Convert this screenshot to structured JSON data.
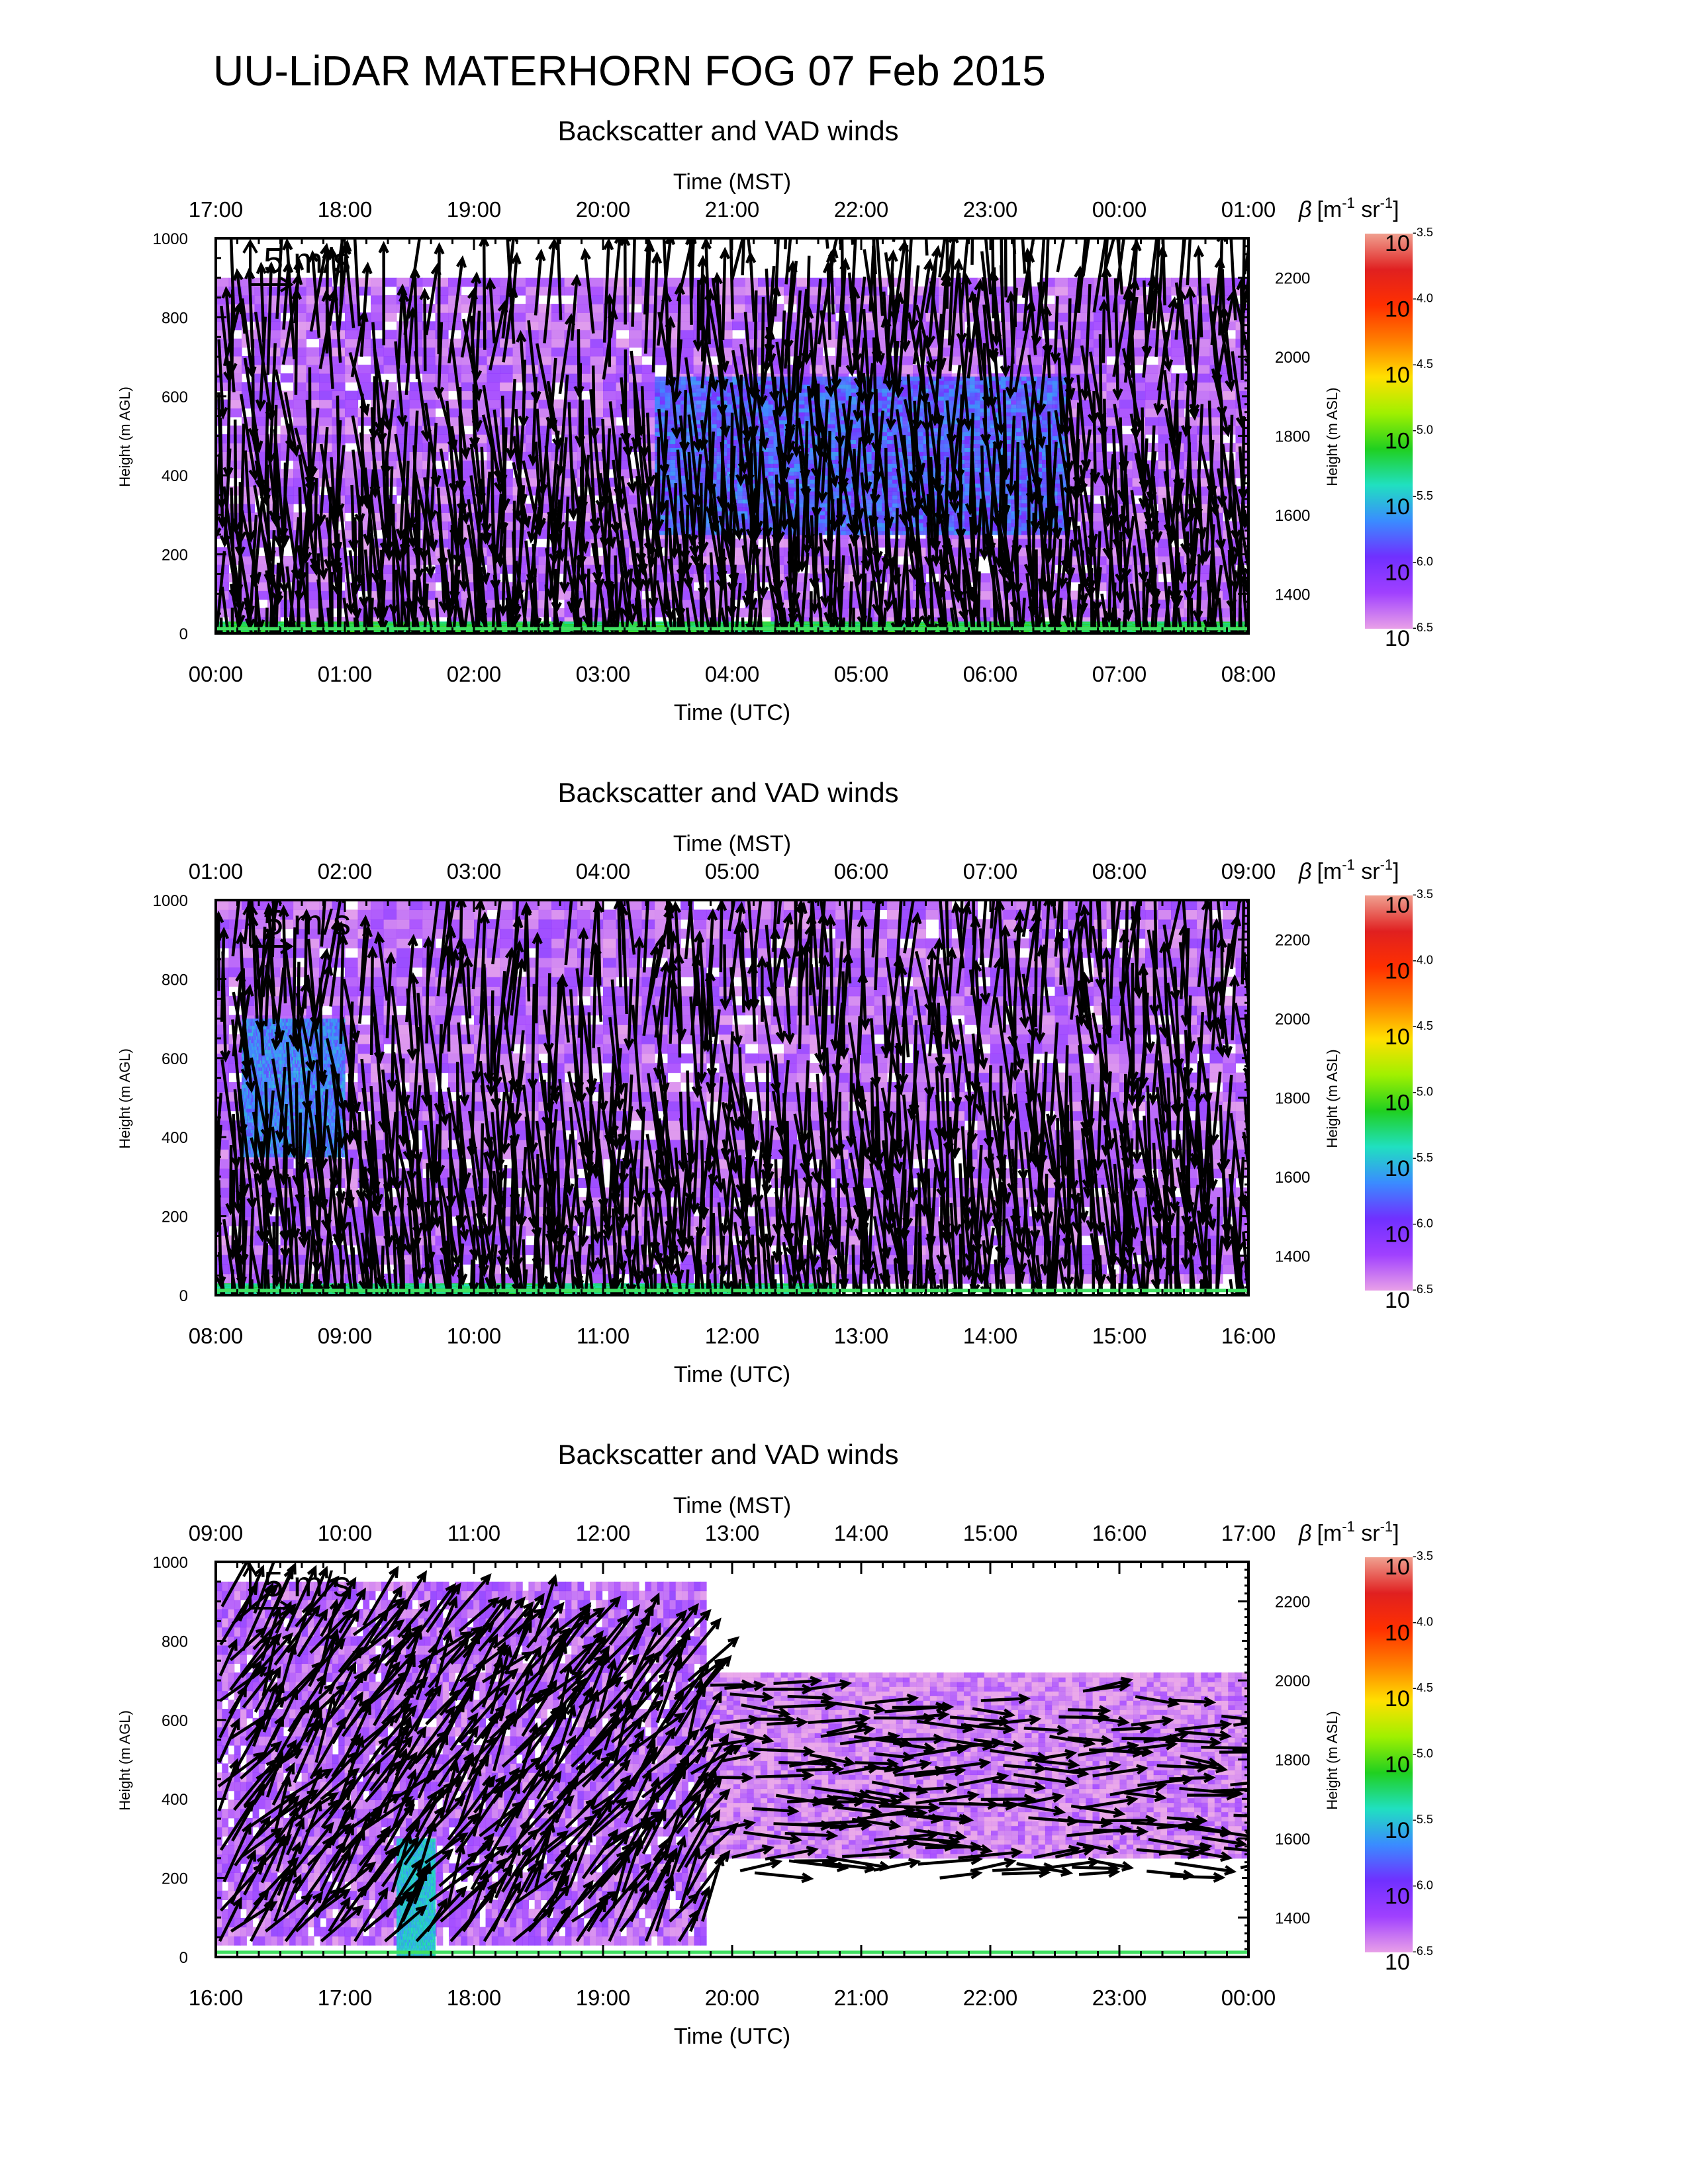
{
  "title": "UU-LiDAR MATERHORN FOG  07 Feb 2015",
  "panels": [
    {
      "panel_title": "Backscatter and VAD winds",
      "top_axis_label": "Time (MST)",
      "bottom_axis_label": "Time (UTC)",
      "top_ticks": [
        "17:00",
        "18:00",
        "19:00",
        "20:00",
        "21:00",
        "22:00",
        "23:00",
        "00:00",
        "01:00"
      ],
      "bottom_ticks": [
        "00:00",
        "01:00",
        "02:00",
        "03:00",
        "04:00",
        "05:00",
        "06:00",
        "07:00",
        "08:00"
      ]
    },
    {
      "panel_title": "Backscatter and VAD winds",
      "top_axis_label": "Time (MST)",
      "bottom_axis_label": "Time (UTC)",
      "top_ticks": [
        "01:00",
        "02:00",
        "03:00",
        "04:00",
        "05:00",
        "06:00",
        "07:00",
        "08:00",
        "09:00"
      ],
      "bottom_ticks": [
        "08:00",
        "09:00",
        "10:00",
        "11:00",
        "12:00",
        "13:00",
        "14:00",
        "15:00",
        "16:00"
      ]
    },
    {
      "panel_title": "Backscatter and VAD winds",
      "top_axis_label": "Time (MST)",
      "bottom_axis_label": "Time (UTC)",
      "top_ticks": [
        "09:00",
        "10:00",
        "11:00",
        "12:00",
        "13:00",
        "14:00",
        "15:00",
        "16:00",
        "17:00"
      ],
      "bottom_ticks": [
        "16:00",
        "17:00",
        "18:00",
        "19:00",
        "20:00",
        "21:00",
        "22:00",
        "23:00",
        "00:00"
      ]
    }
  ],
  "y_left_label": "Height (m AGL)",
  "y_left_ticks": [
    0,
    200,
    400,
    600,
    800,
    1000
  ],
  "y_right_label": "Height (m ASL)",
  "y_right_ticks": [
    1400,
    1600,
    1800,
    2000,
    2200
  ],
  "arrow_scale_label": "5 m/s",
  "colorbar": {
    "label_parts": [
      "β",
      "[m",
      "-1",
      " sr",
      "-1",
      "]"
    ],
    "base": "10",
    "exponents": [
      "-3.5",
      "-4.0",
      "-4.5",
      "-5.0",
      "-5.5",
      "-6.0",
      "-6.5"
    ],
    "colors": [
      "#e8a0e8",
      "#a040ff",
      "#7030ff",
      "#3a8cff",
      "#20e0c0",
      "#20d020",
      "#a0f000",
      "#ffe000",
      "#ff8000",
      "#ff3000",
      "#e02020",
      "#f0a090"
    ]
  },
  "chart_data": [
    {
      "type": "heatmap",
      "title": "Backscatter and VAD winds",
      "xlabel": "Time (UTC)",
      "xlabel_top": "Time (MST)",
      "xlim": [
        "00:00",
        "08:00"
      ],
      "ylabel": "Height (m AGL)",
      "ylabel_right": "Height (m ASL)",
      "ylim": [
        0,
        1000
      ],
      "ylim_right": [
        1300,
        2300
      ],
      "colorbar_range_log10": [
        -6.5,
        -3.5
      ],
      "layers": [
        {
          "t0": 0.0,
          "t1": 8.0,
          "h0": 20,
          "h1": 900,
          "log_beta": -6.3
        },
        {
          "t0": 3.4,
          "t1": 6.6,
          "h0": 250,
          "h1": 650,
          "log_beta": -5.8
        },
        {
          "t0": 0.0,
          "t1": 8.0,
          "h0": 0,
          "h1": 30,
          "log_beta": -5.2
        }
      ],
      "wind_profile_top_m": [
        900,
        820,
        830,
        780,
        820,
        810,
        800,
        850,
        940,
        980,
        1000,
        1000,
        980,
        930,
        920,
        900,
        940
      ]
    },
    {
      "type": "heatmap",
      "title": "Backscatter and VAD winds",
      "xlabel": "Time (UTC)",
      "xlabel_top": "Time (MST)",
      "xlim": [
        "08:00",
        "16:00"
      ],
      "ylabel": "Height (m AGL)",
      "ylabel_right": "Height (m ASL)",
      "ylim": [
        0,
        1000
      ],
      "ylim_right": [
        1300,
        2300
      ],
      "colorbar_range_log10": [
        -6.5,
        -3.5
      ],
      "layers": [
        {
          "t0": 8.0,
          "t1": 16.0,
          "h0": 30,
          "h1": 1000,
          "log_beta": -6.3
        },
        {
          "t0": 8.2,
          "t1": 9.0,
          "h0": 350,
          "h1": 700,
          "log_beta": -5.7
        },
        {
          "t0": 8.0,
          "t1": 12.8,
          "h0": 0,
          "h1": 30,
          "log_beta": -5.3
        }
      ],
      "wind_profile_top_m": [
        900,
        980,
        830,
        810,
        860,
        820,
        860,
        900,
        950,
        940,
        900,
        880,
        950,
        980,
        1000,
        960,
        900
      ]
    },
    {
      "type": "heatmap",
      "title": "Backscatter and VAD winds",
      "xlabel": "Time (UTC)",
      "xlabel_top": "Time (MST)",
      "xlim": [
        "16:00",
        "00:00"
      ],
      "ylabel": "Height (m AGL)",
      "ylabel_right": "Height (m ASL)",
      "ylim": [
        0,
        1000
      ],
      "ylim_right": [
        1300,
        2300
      ],
      "colorbar_range_log10": [
        -6.5,
        -3.5
      ],
      "layers": [
        {
          "t0": 16.0,
          "t1": 19.8,
          "h0": 30,
          "h1": 950,
          "log_beta": -6.3
        },
        {
          "t0": 19.8,
          "t1": 24.0,
          "h0": 250,
          "h1": 720,
          "log_beta": -6.4
        },
        {
          "t0": 17.4,
          "t1": 17.7,
          "h0": 0,
          "h1": 300,
          "log_beta": -5.5
        }
      ],
      "wind_profile_top_m": [
        900,
        880,
        860,
        840,
        830,
        870,
        820,
        760,
        700,
        700,
        650,
        650,
        650,
        680,
        700,
        650,
        650
      ]
    }
  ]
}
